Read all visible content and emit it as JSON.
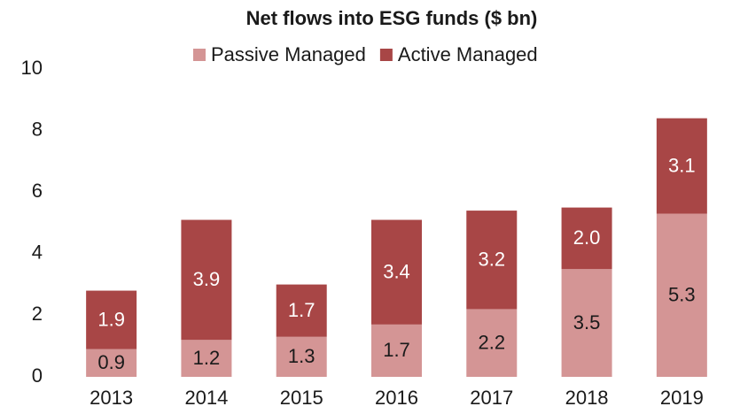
{
  "chart_data": {
    "type": "stacked_bar",
    "title": "Net flows into ESG funds ($ bn)",
    "categories": [
      "2013",
      "2014",
      "2015",
      "2016",
      "2017",
      "2018",
      "2019"
    ],
    "series": [
      {
        "name": "Passive Managed",
        "color": "#d49595",
        "values": [
          0.9,
          1.2,
          1.3,
          1.7,
          2.2,
          3.5,
          5.3
        ],
        "value_labels": [
          "0.9",
          "1.2",
          "1.3",
          "1.7",
          "2.2",
          "3.5",
          "5.3"
        ]
      },
      {
        "name": "Active Managed",
        "color": "#a84646",
        "values": [
          1.9,
          3.9,
          1.7,
          3.4,
          3.2,
          2.0,
          3.1
        ],
        "value_labels": [
          "1.9",
          "3.9",
          "1.7",
          "3.4",
          "3.2",
          "2.0",
          "3.1"
        ]
      }
    ],
    "ylim": [
      0,
      10
    ],
    "yticks": [
      0,
      2,
      4,
      6,
      8,
      10
    ],
    "grid": false,
    "legend": "top"
  }
}
